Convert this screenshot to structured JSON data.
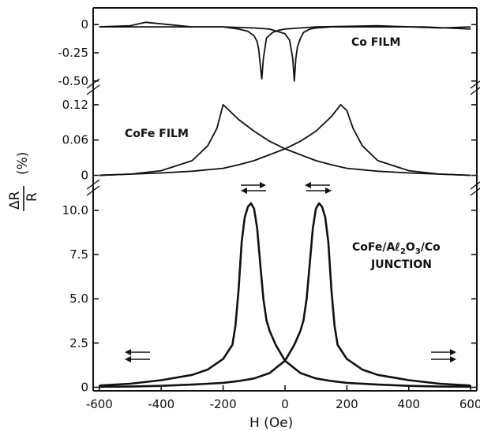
{
  "chart_data": [
    {
      "type": "line",
      "panel": "Co FILM",
      "label": "Co FILM",
      "yticks": [
        "0",
        "-0.25",
        "-0.50"
      ],
      "ytick_values": [
        0,
        -0.25,
        -0.5
      ],
      "ylim": [
        -0.55,
        0.12
      ],
      "series": [
        {
          "x": [
            -600,
            -500,
            -450,
            -300,
            -200,
            -150,
            -120,
            -100,
            -90,
            -85,
            -80,
            -75,
            -70,
            -60,
            -40,
            -20,
            0,
            100,
            300,
            500,
            600
          ],
          "y": [
            -0.02,
            -0.01,
            0.02,
            -0.02,
            -0.02,
            -0.04,
            -0.06,
            -0.1,
            -0.15,
            -0.22,
            -0.35,
            -0.48,
            -0.3,
            -0.12,
            -0.07,
            -0.05,
            -0.04,
            -0.02,
            -0.01,
            -0.03,
            -0.02
          ]
        },
        {
          "x": [
            -600,
            -400,
            -200,
            -100,
            -50,
            0,
            15,
            25,
            30,
            35,
            40,
            50,
            60,
            80,
            100,
            150,
            200,
            300,
            450,
            600
          ],
          "y": [
            -0.02,
            -0.02,
            -0.02,
            -0.03,
            -0.04,
            -0.08,
            -0.14,
            -0.3,
            -0.5,
            -0.3,
            -0.2,
            -0.12,
            -0.07,
            -0.04,
            -0.03,
            -0.02,
            -0.02,
            -0.02,
            -0.02,
            -0.04
          ]
        }
      ]
    },
    {
      "type": "line",
      "panel": "CoFe FILM",
      "label": "CoFe FILM",
      "yticks": [
        "0.12",
        "0.06",
        "0"
      ],
      "ytick_values": [
        0.12,
        0.06,
        0
      ],
      "ylim": [
        -0.01,
        0.14
      ],
      "series": [
        {
          "x": [
            -600,
            -500,
            -400,
            -300,
            -250,
            -220,
            -200,
            -150,
            -100,
            -50,
            0,
            50,
            100,
            150,
            200,
            300,
            400,
            500,
            600
          ],
          "y": [
            0.0,
            0.002,
            0.008,
            0.025,
            0.05,
            0.08,
            0.12,
            0.095,
            0.075,
            0.058,
            0.045,
            0.035,
            0.025,
            0.018,
            0.012,
            0.007,
            0.004,
            0.002,
            0.0
          ]
        },
        {
          "x": [
            -600,
            -500,
            -400,
            -300,
            -200,
            -150,
            -100,
            -50,
            0,
            50,
            100,
            150,
            180,
            200,
            220,
            250,
            300,
            400,
            500,
            600
          ],
          "y": [
            0.0,
            0.002,
            0.004,
            0.007,
            0.012,
            0.018,
            0.025,
            0.035,
            0.045,
            0.058,
            0.075,
            0.1,
            0.12,
            0.11,
            0.08,
            0.05,
            0.025,
            0.008,
            0.002,
            0.0
          ]
        }
      ]
    },
    {
      "type": "line",
      "panel": "CoFe/Al2O3/Co JUNCTION",
      "label_line1_a": "CoFe/A",
      "label_line1_b": "ℓ",
      "label_line1_c": "2",
      "label_line1_d": "O",
      "label_line1_e": "3",
      "label_line1_f": "/Co",
      "label_line2": "JUNCTION",
      "yticks": [
        "10.0",
        "7.5",
        "5.0",
        "2.5",
        "0"
      ],
      "ytick_values": [
        10,
        7.5,
        5,
        2.5,
        0
      ],
      "ylim": [
        -0.2,
        11.2
      ],
      "series": [
        {
          "x": [
            -600,
            -500,
            -400,
            -300,
            -250,
            -200,
            -170,
            -160,
            -150,
            -140,
            -130,
            -120,
            -110,
            -100,
            -90,
            -80,
            -70,
            -60,
            -50,
            -30,
            0,
            50,
            100,
            150,
            200,
            300,
            400,
            500,
            600
          ],
          "y": [
            0.1,
            0.2,
            0.4,
            0.7,
            1.0,
            1.6,
            2.4,
            3.5,
            5.5,
            8.2,
            9.6,
            10.2,
            10.4,
            10.1,
            9.0,
            7.0,
            5.0,
            3.8,
            3.2,
            2.4,
            1.5,
            0.8,
            0.5,
            0.35,
            0.25,
            0.15,
            0.08,
            0.04,
            0.03
          ]
        },
        {
          "x": [
            -600,
            -500,
            -400,
            -300,
            -200,
            -150,
            -100,
            -50,
            0,
            30,
            50,
            60,
            70,
            80,
            90,
            100,
            110,
            120,
            130,
            140,
            150,
            160,
            170,
            200,
            250,
            300,
            400,
            500,
            600
          ],
          "y": [
            0.03,
            0.04,
            0.08,
            0.15,
            0.25,
            0.35,
            0.5,
            0.8,
            1.5,
            2.4,
            3.2,
            3.8,
            5.0,
            7.0,
            9.0,
            10.1,
            10.4,
            10.2,
            9.6,
            8.2,
            5.5,
            3.5,
            2.4,
            1.6,
            1.0,
            0.7,
            0.4,
            0.2,
            0.1
          ]
        }
      ]
    }
  ],
  "xaxis": {
    "ticks": [
      "-600",
      "-400",
      "-200",
      "0",
      "200",
      "400",
      "600"
    ],
    "values": [
      -600,
      -400,
      -200,
      0,
      200,
      400,
      600
    ],
    "xlim": [
      -620,
      620
    ],
    "title": "H (Oe)"
  },
  "yaxis_title": {
    "numerator": "ΔR",
    "denominator": "R",
    "unit": "(%)"
  }
}
